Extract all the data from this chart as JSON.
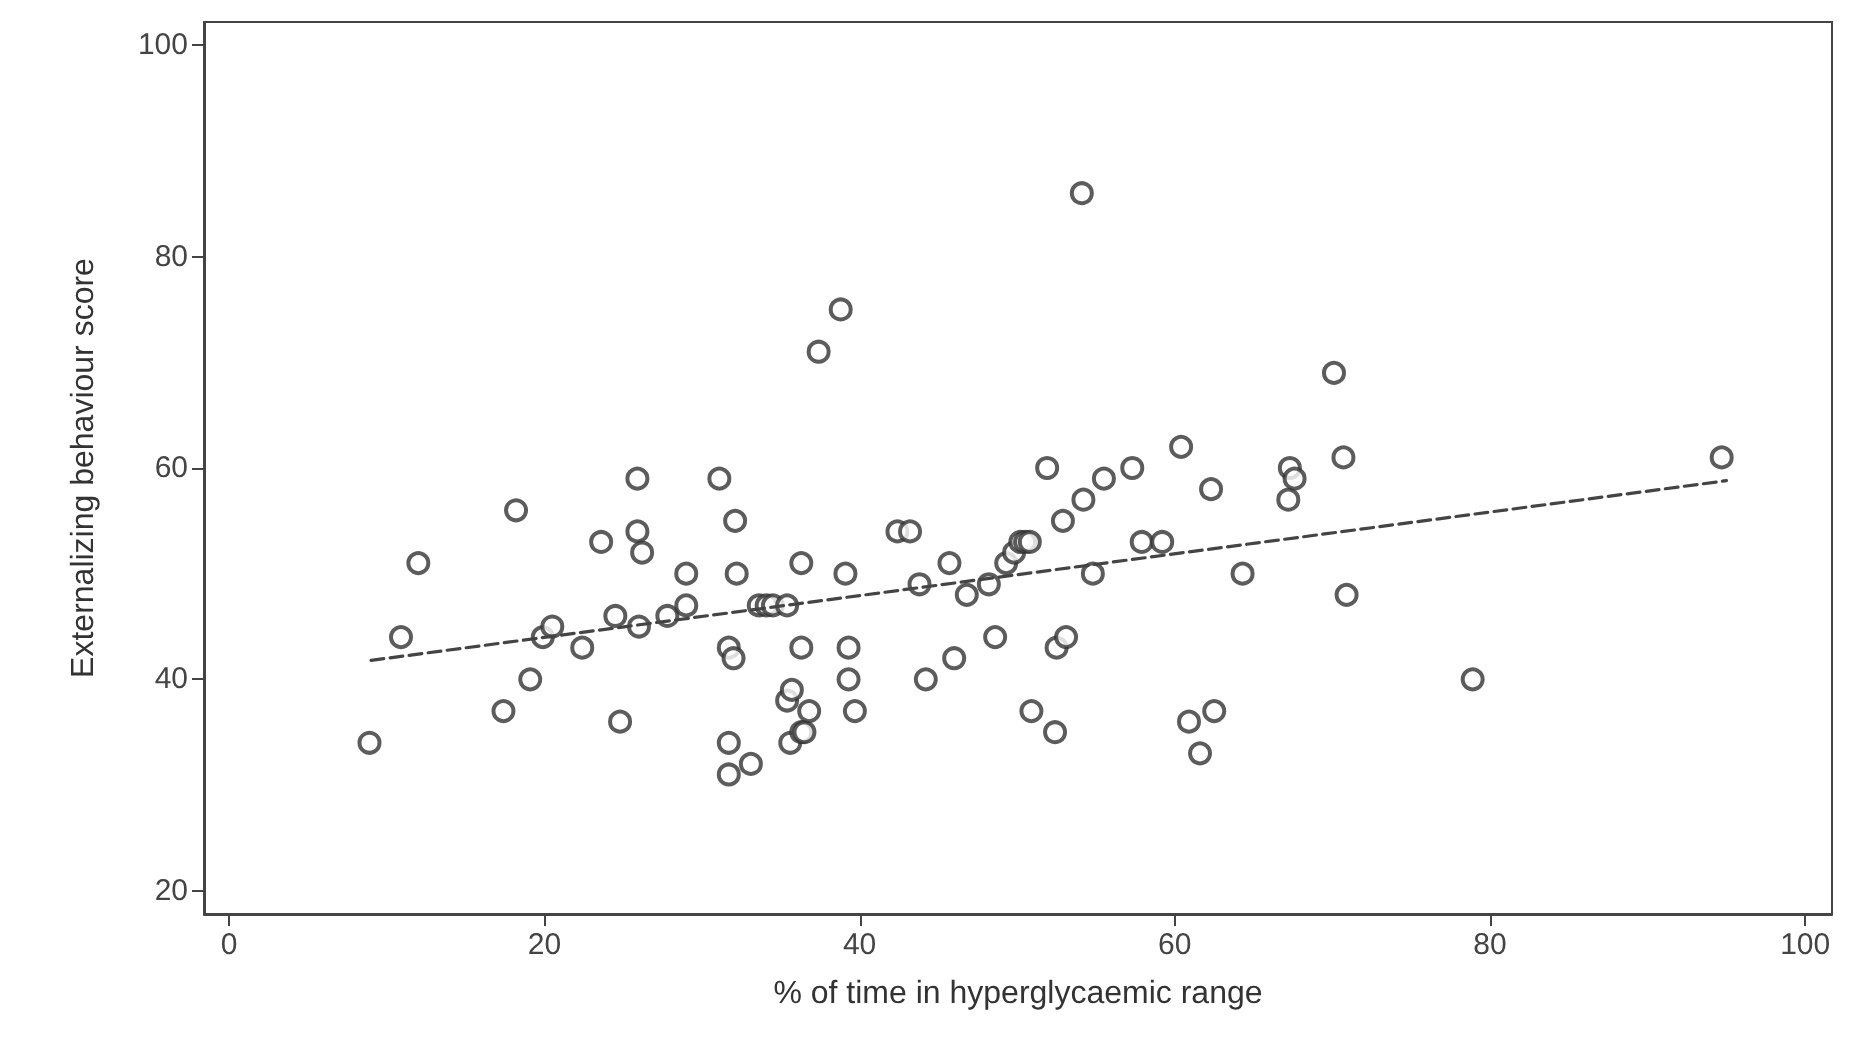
{
  "chart_data": {
    "type": "scatter",
    "xlabel": "% of time in hyperglycaemic range",
    "ylabel": "Externalizing behaviour score",
    "xlim": [
      -1.6,
      101.7
    ],
    "ylim": [
      17.8,
      102.2
    ],
    "xticks": [
      0,
      20,
      40,
      60,
      80,
      100
    ],
    "yticks": [
      20,
      40,
      60,
      80,
      100
    ],
    "grid": false,
    "series": [
      {
        "color": "#333333",
        "marker": "circle",
        "x": [
          8.9,
          10.9,
          12.0,
          17.4,
          18.2,
          19.1,
          19.9,
          20.5,
          22.4,
          23.6,
          24.5,
          24.8,
          25.9,
          25.9,
          26.2,
          26.0,
          27.8,
          29.0,
          29.0,
          31.1,
          31.7,
          31.7,
          31.7,
          32.0,
          32.1,
          32.2,
          33.1,
          33.6,
          34.1,
          34.5,
          35.4,
          35.4,
          35.7,
          35.6,
          36.3,
          36.5,
          36.3,
          36.3,
          36.8,
          37.4,
          38.8,
          39.1,
          39.3,
          39.3,
          39.7,
          42.4,
          43.2,
          43.8,
          44.2,
          45.7,
          46.0,
          46.8,
          48.2,
          48.6,
          49.3,
          49.8,
          50.2,
          50.5,
          50.8,
          50.9,
          51.9,
          52.4,
          52.5,
          52.9,
          53.1,
          54.1,
          54.2,
          54.8,
          55.5,
          57.3,
          57.9,
          59.2,
          60.4,
          60.9,
          61.6,
          62.3,
          62.5,
          64.3,
          67.2,
          67.3,
          67.6,
          70.1,
          70.7,
          70.9,
          78.9,
          94.7
        ],
        "values": [
          34,
          44,
          51,
          37,
          56,
          40,
          44,
          45,
          43,
          53,
          46,
          36,
          59,
          54,
          52,
          45,
          46,
          50,
          47,
          59,
          43,
          34,
          31,
          42,
          55,
          50,
          32,
          47,
          47,
          47,
          47,
          38,
          39,
          34,
          35,
          35,
          51,
          43,
          37,
          71,
          75,
          50,
          43,
          40,
          37,
          54,
          54,
          49,
          40,
          51,
          42,
          48,
          49,
          44,
          51,
          52,
          53,
          53,
          53,
          37,
          60,
          35,
          43,
          55,
          44,
          86,
          57,
          50,
          59,
          60,
          53,
          53,
          62,
          36,
          33,
          58,
          37,
          50,
          57,
          60,
          59,
          69,
          61,
          48,
          40,
          61
        ]
      },
      {
        "type": "line",
        "color": "#444444",
        "marker": "none",
        "line_style": "dashed",
        "x": [
          9,
          95
        ],
        "values": [
          41.8,
          58.8
        ]
      }
    ]
  }
}
